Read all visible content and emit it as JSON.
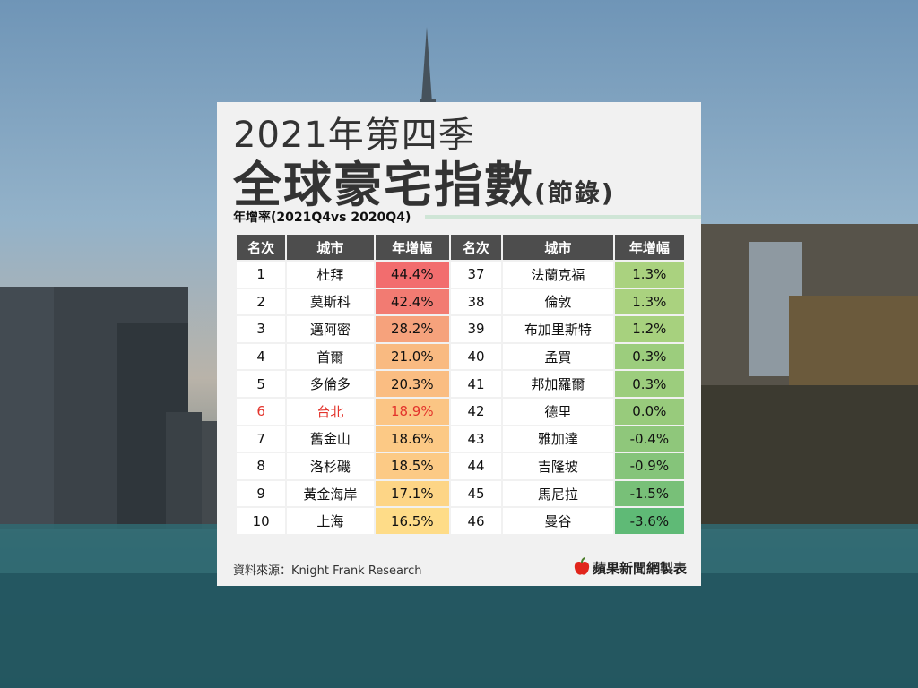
{
  "title": {
    "line1": "2021年第四季",
    "line2": "全球豪宅指數",
    "line2_suffix": "(節錄)",
    "subtitle": "年增率(2021Q4vs 2020Q4)"
  },
  "table": {
    "headers": [
      "名次",
      "城市",
      "年增幅",
      "名次",
      "城市",
      "年增幅"
    ],
    "left": [
      {
        "rank": "1",
        "city": "杜拜",
        "change": "44.4%",
        "color": "#f26d6e"
      },
      {
        "rank": "2",
        "city": "莫斯科",
        "change": "42.4%",
        "color": "#f27b72"
      },
      {
        "rank": "3",
        "city": "邁阿密",
        "change": "28.2%",
        "color": "#f6a27c"
      },
      {
        "rank": "4",
        "city": "首爾",
        "change": "21.0%",
        "color": "#f9ba81"
      },
      {
        "rank": "5",
        "city": "多倫多",
        "change": "20.3%",
        "color": "#fabd82"
      },
      {
        "rank": "6",
        "city": "台北",
        "change": "18.9%",
        "color": "#fbc584",
        "highlight": true
      },
      {
        "rank": "7",
        "city": "舊金山",
        "change": "18.6%",
        "color": "#fcc985"
      },
      {
        "rank": "8",
        "city": "洛杉磯",
        "change": "18.5%",
        "color": "#fcca85"
      },
      {
        "rank": "9",
        "city": "黃金海岸",
        "change": "17.1%",
        "color": "#fdd586"
      },
      {
        "rank": "10",
        "city": "上海",
        "change": "16.5%",
        "color": "#fedc88"
      }
    ],
    "right": [
      {
        "rank": "37",
        "city": "法蘭克福",
        "change": "1.3%",
        "color": "#aad27f"
      },
      {
        "rank": "38",
        "city": "倫敦",
        "change": "1.3%",
        "color": "#aad27f"
      },
      {
        "rank": "39",
        "city": "布加里斯特",
        "change": "1.2%",
        "color": "#a7d17e"
      },
      {
        "rank": "40",
        "city": "孟買",
        "change": "0.3%",
        "color": "#9ccd7d"
      },
      {
        "rank": "41",
        "city": "邦加羅爾",
        "change": "0.3%",
        "color": "#9ccd7d"
      },
      {
        "rank": "42",
        "city": "德里",
        "change": "0.0%",
        "color": "#98cb7c"
      },
      {
        "rank": "43",
        "city": "雅加達",
        "change": "-0.4%",
        "color": "#8fc77b"
      },
      {
        "rank": "44",
        "city": "吉隆坡",
        "change": "-0.9%",
        "color": "#85c47a"
      },
      {
        "rank": "45",
        "city": "馬尼拉",
        "change": "-1.5%",
        "color": "#78c078"
      },
      {
        "rank": "46",
        "city": "曼谷",
        "change": "-3.6%",
        "color": "#5fba76"
      }
    ]
  },
  "footer": {
    "source": "資料來源：Knight Frank Research",
    "brand": "蘋果新聞網製表"
  },
  "colors": {
    "header_bg": "#4d4d4d",
    "highlight_text": "#e3342c",
    "brand_red": "#e1251b"
  }
}
